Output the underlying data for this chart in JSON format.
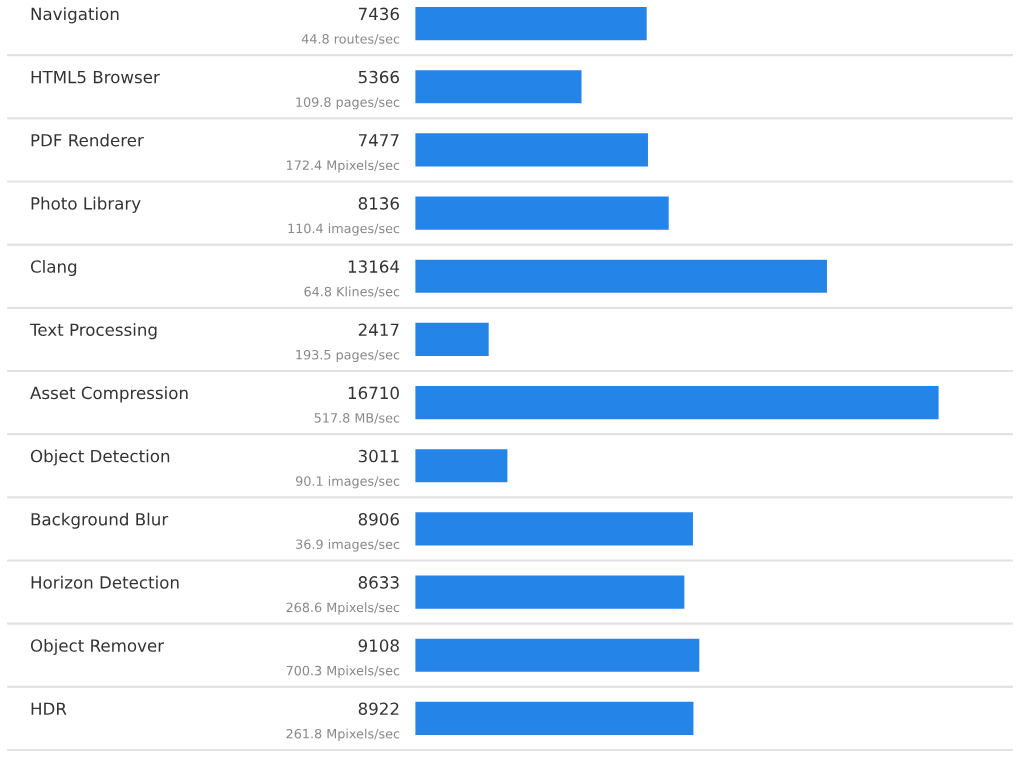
{
  "chart_data": {
    "type": "bar",
    "orientation": "horizontal",
    "categories": [
      "Navigation",
      "HTML5 Browser",
      "PDF Renderer",
      "Photo Library",
      "Clang",
      "Text Processing",
      "Asset Compression",
      "Object Detection",
      "Background Blur",
      "Horizon Detection",
      "Object Remover",
      "HDR"
    ],
    "values": [
      7436,
      5366,
      7477,
      8136,
      13164,
      2417,
      16710,
      3011,
      8906,
      8633,
      9108,
      8922
    ],
    "color": "#2584e8",
    "data_labels": true,
    "tick_labels": false,
    "annotations": [
      "44.8 routes/sec",
      "109.8 pages/sec",
      "172.4 Mpixels/sec",
      "110.4 images/sec",
      "64.8 Klines/sec",
      "193.5 pages/sec",
      "517.8 MB/sec",
      "90.1 images/sec",
      "36.9 images/sec",
      "268.6 Mpixels/sec",
      "700.3 Mpixels/sec",
      "261.8 Mpixels/sec"
    ]
  }
}
